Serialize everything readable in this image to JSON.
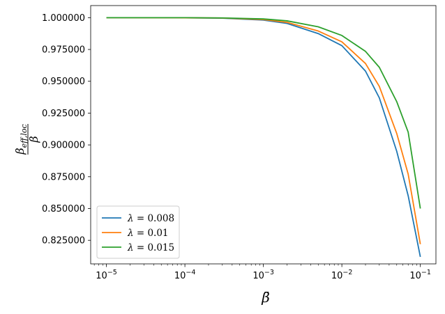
{
  "chart_data": {
    "type": "line",
    "xlabel": "β̄",
    "ylabel_numerator": "β",
    "ylabel_numerator_sub": "eff,loc",
    "ylabel_denominator": "β",
    "xscale": "log",
    "xlim": [
      6.3e-06,
      0.158
    ],
    "ylim": [
      0.8065,
      1.0095
    ],
    "grid": false,
    "legend_position": "lower-left",
    "x_ticks": [
      {
        "value": 1e-05,
        "base": "10",
        "exp": "−5"
      },
      {
        "value": 0.0001,
        "base": "10",
        "exp": "−4"
      },
      {
        "value": 0.001,
        "base": "10",
        "exp": "−3"
      },
      {
        "value": 0.01,
        "base": "10",
        "exp": "−2"
      },
      {
        "value": 0.1,
        "base": "10",
        "exp": "−1"
      }
    ],
    "y_ticks": [
      {
        "value": 0.825,
        "label": "0.825000"
      },
      {
        "value": 0.85,
        "label": "0.850000"
      },
      {
        "value": 0.875,
        "label": "0.875000"
      },
      {
        "value": 0.9,
        "label": "0.900000"
      },
      {
        "value": 0.925,
        "label": "0.925000"
      },
      {
        "value": 0.95,
        "label": "0.950000"
      },
      {
        "value": 0.975,
        "label": "0.975000"
      },
      {
        "value": 1.0,
        "label": "1.000000"
      }
    ],
    "series": [
      {
        "name": "λ = 0.008",
        "lambda_symbol": "λ",
        "lambda_value": "= 0.008",
        "color": "#1f77b4",
        "x": [
          1e-05,
          0.0001,
          0.0003,
          0.001,
          0.002,
          0.005,
          0.01,
          0.02,
          0.03,
          0.05,
          0.07,
          0.1
        ],
        "y": [
          1.0,
          0.9999,
          0.9996,
          0.9981,
          0.9955,
          0.9875,
          0.978,
          0.958,
          0.937,
          0.895,
          0.86,
          0.812
        ]
      },
      {
        "name": "λ = 0.01",
        "lambda_symbol": "λ",
        "lambda_value": "= 0.01",
        "color": "#ff7f0e",
        "x": [
          1e-05,
          0.0001,
          0.0003,
          0.001,
          0.002,
          0.005,
          0.01,
          0.02,
          0.03,
          0.05,
          0.07,
          0.1
        ],
        "y": [
          1.0,
          0.9999,
          0.9997,
          0.9985,
          0.9963,
          0.9895,
          0.981,
          0.964,
          0.946,
          0.909,
          0.877,
          0.822
        ]
      },
      {
        "name": "λ = 0.015",
        "lambda_symbol": "λ",
        "lambda_value": "= 0.015",
        "color": "#2ca02c",
        "x": [
          1e-05,
          0.0001,
          0.0003,
          0.001,
          0.002,
          0.005,
          0.01,
          0.02,
          0.03,
          0.05,
          0.07,
          0.1
        ],
        "y": [
          1.0,
          1.0,
          0.9998,
          0.999,
          0.9975,
          0.9928,
          0.986,
          0.9735,
          0.961,
          0.934,
          0.91,
          0.85
        ]
      }
    ]
  }
}
